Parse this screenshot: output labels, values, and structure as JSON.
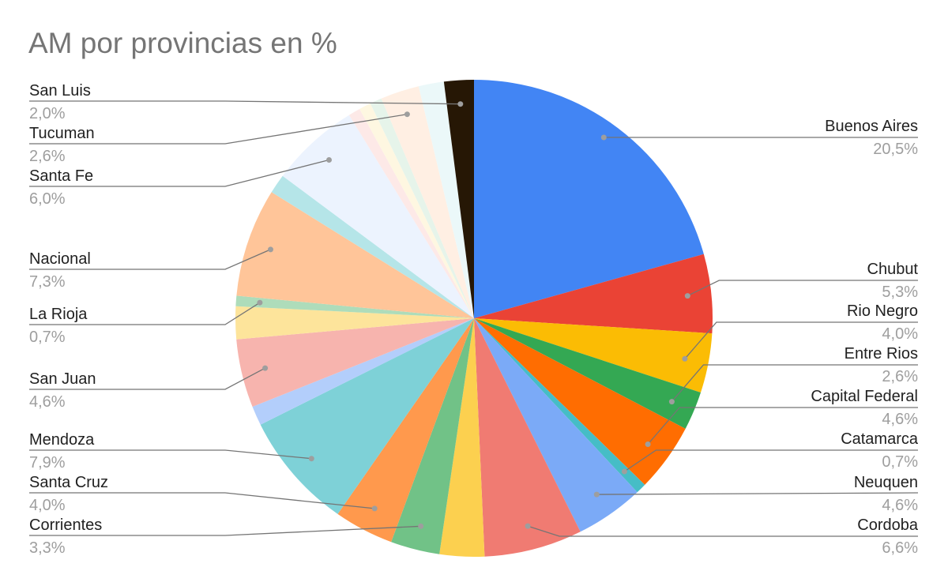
{
  "chart_data": {
    "type": "pie",
    "title": "AM por provincias en %",
    "slices": [
      {
        "name": "Buenos Aires",
        "value": 20.5,
        "label": "20,5%",
        "color": "#4285f4",
        "labeled": true
      },
      {
        "name": "Chubut",
        "value": 5.3,
        "label": "5,3%",
        "color": "#ea4335",
        "labeled": true
      },
      {
        "name": "Rio Negro",
        "value": 4.0,
        "label": "4,0%",
        "color": "#fbbc04",
        "labeled": true
      },
      {
        "name": "Entre Rios",
        "value": 2.6,
        "label": "2,6%",
        "color": "#34a853",
        "labeled": true
      },
      {
        "name": "Capital Federal",
        "value": 4.6,
        "label": "4,6%",
        "color": "#ff6d01",
        "labeled": true
      },
      {
        "name": "Catamarca",
        "value": 0.7,
        "label": "0,7%",
        "color": "#46bdc6",
        "labeled": true
      },
      {
        "name": "Neuquen",
        "value": 4.6,
        "label": "4,6%",
        "color": "#7baaf7",
        "labeled": true
      },
      {
        "name": "Cordoba",
        "value": 6.6,
        "label": "6,6%",
        "color": "#f07b72",
        "labeled": true
      },
      {
        "name": "",
        "value": 3.0,
        "color": "#fcd04f",
        "labeled": false
      },
      {
        "name": "Corrientes",
        "value": 3.3,
        "label": "3,3%",
        "color": "#71c287",
        "labeled": true
      },
      {
        "name": "Santa Cruz",
        "value": 4.0,
        "label": "4,0%",
        "color": "#ff994d",
        "labeled": false
      },
      {
        "name": "Mendoza",
        "value": 7.9,
        "label": "7,9%",
        "color": "#7ed1d7",
        "labeled": true
      },
      {
        "name": "",
        "value": 1.3,
        "color": "#b3cefb",
        "labeled": false
      },
      {
        "name": "San Juan",
        "value": 4.6,
        "label": "4,6%",
        "color": "#f7b4ae",
        "labeled": true
      },
      {
        "name": "",
        "value": 2.2,
        "color": "#fde49b",
        "labeled": false
      },
      {
        "name": "La Rioja",
        "value": 0.7,
        "label": "0,7%",
        "color": "#aedcba",
        "labeled": true
      },
      {
        "name": "Nacional",
        "value": 7.3,
        "label": "7,3%",
        "color": "#ffc599",
        "labeled": true
      },
      {
        "name": "",
        "value": 1.3,
        "color": "#b5e5e8",
        "labeled": false
      },
      {
        "name": "Santa Fe",
        "value": 6.0,
        "label": "6,0%",
        "color": "#ecf3fe",
        "labeled": true
      },
      {
        "name": "",
        "value": 0.8,
        "color": "#fde9e7",
        "labeled": false
      },
      {
        "name": "",
        "value": 0.8,
        "color": "#fef7e1",
        "labeled": false
      },
      {
        "name": "",
        "value": 0.8,
        "color": "#e6f4ea",
        "labeled": false
      },
      {
        "name": "Tucuman",
        "value": 2.6,
        "label": "2,6%",
        "color": "#ffefe3",
        "labeled": true
      },
      {
        "name": "",
        "value": 1.7,
        "color": "#ebf8f9",
        "labeled": false
      },
      {
        "name": "San Luis",
        "value": 2.0,
        "label": "2,0%",
        "color": "#261705",
        "labeled": true
      }
    ]
  }
}
